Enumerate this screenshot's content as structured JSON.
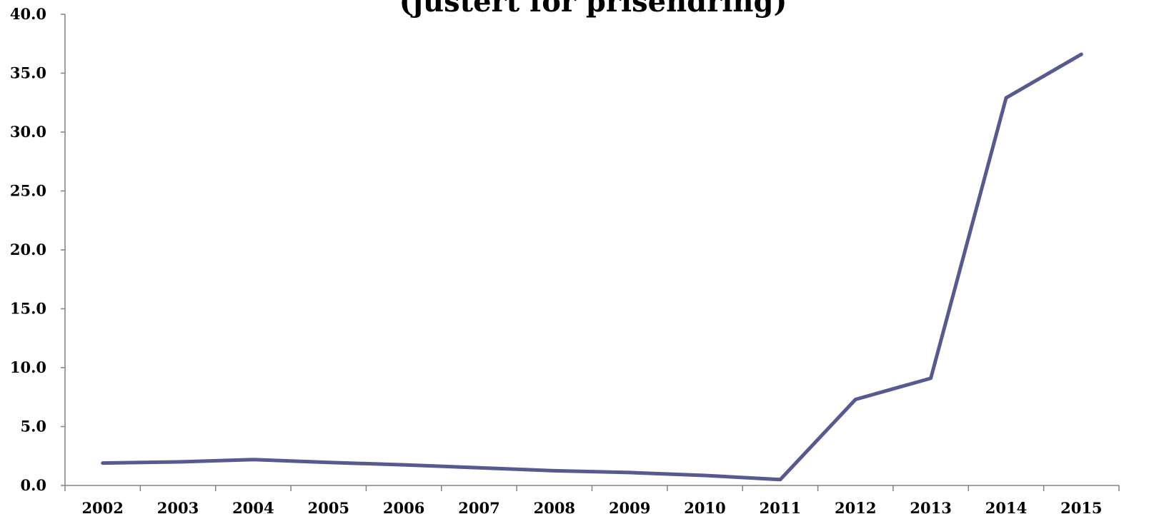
{
  "chart_data": {
    "type": "line",
    "title": "(justert for prisendring)",
    "xlabel": "",
    "ylabel": "",
    "categories": [
      "2002",
      "2003",
      "2004",
      "2005",
      "2006",
      "2007",
      "2008",
      "2009",
      "2010",
      "2011",
      "2012",
      "2013",
      "2014",
      "2015"
    ],
    "series": [
      {
        "values": [
          1.9,
          2.0,
          2.2,
          1.95,
          1.75,
          1.5,
          1.25,
          1.1,
          0.85,
          0.5,
          7.3,
          9.1,
          32.9,
          36.6
        ]
      }
    ],
    "ylim": [
      0,
      40
    ],
    "yticks": [
      "0.0",
      "5.0",
      "10.0",
      "15.0",
      "20.0",
      "25.0",
      "30.0",
      "35.0",
      "40.0"
    ],
    "grid": false,
    "legend": "none",
    "line_color": "#565a8e",
    "axis_color": "#808080"
  }
}
